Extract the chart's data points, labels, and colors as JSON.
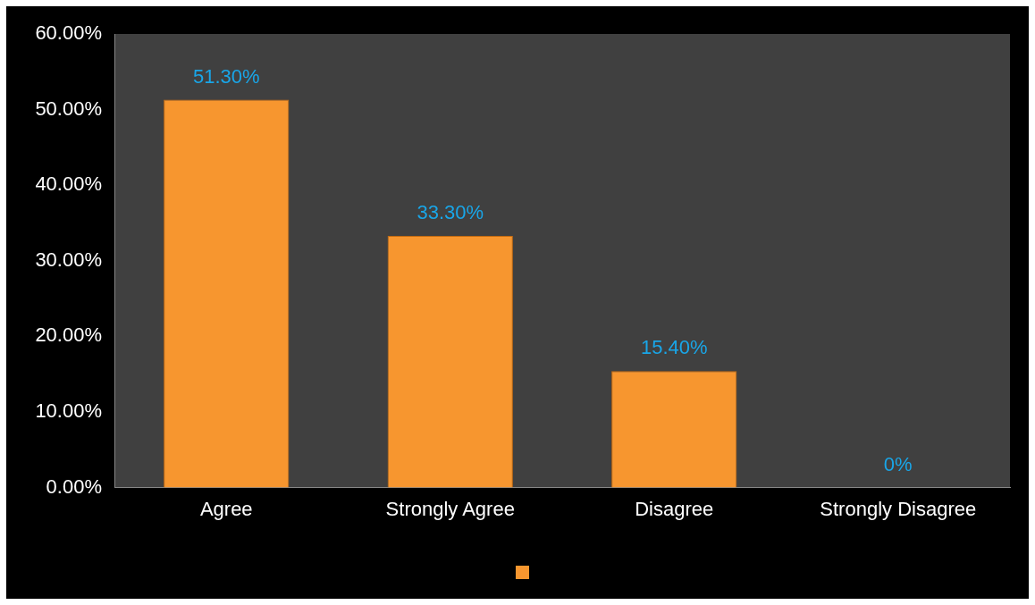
{
  "chart_data": {
    "type": "bar",
    "categories": [
      "Agree",
      "Strongly Agree",
      "Disagree",
      "Strongly Disagree"
    ],
    "series": [
      {
        "color": "#f7962f",
        "values": [
          51.3,
          33.3,
          15.4,
          0
        ],
        "value_labels": [
          "51.30%",
          "33.30%",
          "15.40%",
          "0%"
        ]
      }
    ],
    "ylim": [
      0,
      60
    ],
    "yticks": [
      {
        "value": 0,
        "label": "0.00%"
      },
      {
        "value": 10,
        "label": "10.00%"
      },
      {
        "value": 20,
        "label": "20.00%"
      },
      {
        "value": 30,
        "label": "30.00%"
      },
      {
        "value": 40,
        "label": "40.00%"
      },
      {
        "value": 50,
        "label": "50.00%"
      },
      {
        "value": 60,
        "label": "60.00%"
      }
    ],
    "grid": false
  }
}
